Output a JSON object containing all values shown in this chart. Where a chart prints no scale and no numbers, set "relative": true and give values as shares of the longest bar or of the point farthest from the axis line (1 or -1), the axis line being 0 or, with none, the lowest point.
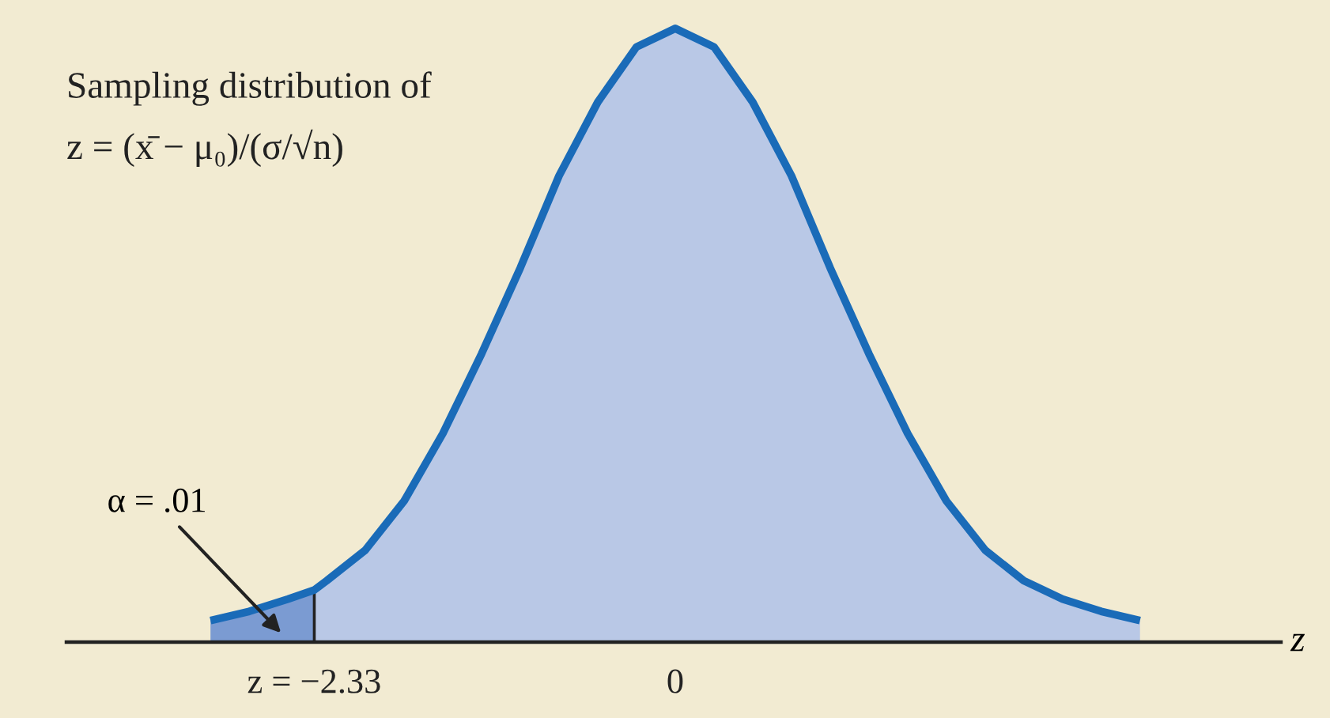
{
  "chart_data": {
    "type": "area",
    "relative": true,
    "xlabel": "z",
    "xlim": [
      -3.93,
      3.91
    ],
    "xticks": [
      {
        "value": -2.33,
        "label": "z = −2.33"
      },
      0
    ],
    "grid": false,
    "legend": false,
    "ref_lines": [
      {
        "axis": "x",
        "value": -2.33,
        "color": "#222222"
      }
    ],
    "series": [
      {
        "type": "area",
        "color": "#b9c8e6",
        "x": [
          -2.33,
          -2.25,
          -2,
          -1.75,
          -1.5,
          -1.25,
          -1,
          -0.75,
          -0.5,
          -0.25,
          0,
          0.25,
          0.5,
          0.75,
          1,
          1.25,
          1.5,
          1.75,
          2,
          2.25,
          2.5,
          2.75,
          3
        ],
        "values": [
          0.085,
          0.1,
          0.15,
          0.23,
          0.34,
          0.47,
          0.61,
          0.76,
          0.88,
          0.97,
          1,
          0.97,
          0.88,
          0.76,
          0.61,
          0.47,
          0.34,
          0.23,
          0.15,
          0.1,
          0.07,
          0.05,
          0.035
        ]
      },
      {
        "type": "area",
        "color": "#7b9bd2",
        "x": [
          -3,
          -2.75,
          -2.5,
          -2.33
        ],
        "values": [
          0.035,
          0.05,
          0.07,
          0.085
        ]
      },
      {
        "type": "line",
        "color": "#1a6bb8",
        "x": [
          -3,
          -2.75,
          -2.5,
          -2.33,
          -2.25,
          -2,
          -1.75,
          -1.5,
          -1.25,
          -1,
          -0.75,
          -0.5,
          -0.25,
          0,
          0.25,
          0.5,
          0.75,
          1,
          1.25,
          1.5,
          1.75,
          2,
          2.25,
          2.5,
          2.75,
          3
        ],
        "values": [
          0.035,
          0.05,
          0.07,
          0.085,
          0.1,
          0.15,
          0.23,
          0.34,
          0.47,
          0.61,
          0.76,
          0.88,
          0.97,
          1,
          0.97,
          0.88,
          0.76,
          0.61,
          0.47,
          0.34,
          0.23,
          0.15,
          0.1,
          0.07,
          0.05,
          0.035
        ]
      }
    ],
    "annotations": [
      "Sampling distribution of\nz = (x̄ − μ₀)/(σ/√n)",
      "α = .01"
    ]
  }
}
